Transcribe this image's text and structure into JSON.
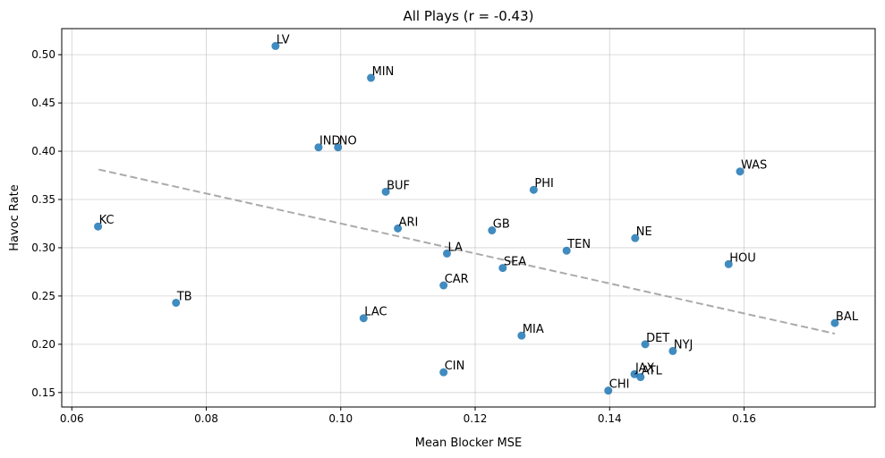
{
  "chart_data": {
    "type": "scatter",
    "title": "All Plays (r = -0.43)",
    "xlabel": "Mean Blocker MSE",
    "ylabel": "Havoc Rate",
    "xlim": [
      0.0585,
      0.1795
    ],
    "ylim": [
      0.135,
      0.527
    ],
    "xticks": [
      0.06,
      0.08,
      0.1,
      0.12,
      0.14,
      0.16
    ],
    "xtick_labels": [
      "0.06",
      "0.08",
      "0.10",
      "0.12",
      "0.14",
      "0.16"
    ],
    "yticks": [
      0.15,
      0.2,
      0.25,
      0.3,
      0.35,
      0.4,
      0.45,
      0.5
    ],
    "ytick_labels": [
      "0.15",
      "0.20",
      "0.25",
      "0.30",
      "0.35",
      "0.40",
      "0.45",
      "0.50"
    ],
    "grid": true,
    "point_color": "#1f77b4",
    "trendline_color": "#aaaaaa",
    "trendline": {
      "x": [
        0.064,
        0.1735
      ],
      "y": [
        0.381,
        0.211
      ],
      "style": "dashed"
    },
    "points": [
      {
        "label": "LV",
        "x": 0.0903,
        "y": 0.509
      },
      {
        "label": "MIN",
        "x": 0.1045,
        "y": 0.476
      },
      {
        "label": "IND",
        "x": 0.0967,
        "y": 0.404
      },
      {
        "label": "NO",
        "x": 0.0996,
        "y": 0.404
      },
      {
        "label": "WAS",
        "x": 0.1594,
        "y": 0.379
      },
      {
        "label": "BUF",
        "x": 0.1067,
        "y": 0.358
      },
      {
        "label": "PHI",
        "x": 0.1287,
        "y": 0.36
      },
      {
        "label": "KC",
        "x": 0.0639,
        "y": 0.322
      },
      {
        "label": "ARI",
        "x": 0.1085,
        "y": 0.32
      },
      {
        "label": "GB",
        "x": 0.1225,
        "y": 0.318
      },
      {
        "label": "NE",
        "x": 0.1438,
        "y": 0.31
      },
      {
        "label": "TEN",
        "x": 0.1336,
        "y": 0.297
      },
      {
        "label": "LA",
        "x": 0.1158,
        "y": 0.294
      },
      {
        "label": "HOU",
        "x": 0.1577,
        "y": 0.283
      },
      {
        "label": "SEA",
        "x": 0.1241,
        "y": 0.279
      },
      {
        "label": "CAR",
        "x": 0.1153,
        "y": 0.261
      },
      {
        "label": "TB",
        "x": 0.0755,
        "y": 0.243
      },
      {
        "label": "LAC",
        "x": 0.1034,
        "y": 0.227
      },
      {
        "label": "BAL",
        "x": 0.1735,
        "y": 0.222
      },
      {
        "label": "MIA",
        "x": 0.1269,
        "y": 0.209
      },
      {
        "label": "DET",
        "x": 0.1453,
        "y": 0.2
      },
      {
        "label": "NYJ",
        "x": 0.1494,
        "y": 0.193
      },
      {
        "label": "CIN",
        "x": 0.1153,
        "y": 0.171
      },
      {
        "label": "JAX",
        "x": 0.1437,
        "y": 0.169
      },
      {
        "label": "ATL",
        "x": 0.1446,
        "y": 0.166
      },
      {
        "label": "CHI",
        "x": 0.1398,
        "y": 0.152
      }
    ]
  }
}
